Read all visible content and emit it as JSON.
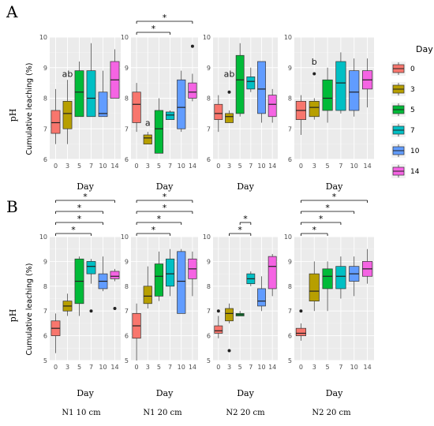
{
  "figure": {
    "panel_labels": [
      "A",
      "B"
    ],
    "y_label": "pH",
    "x_label": "Day",
    "inner_ylabel": "Cumulative leaching (%)",
    "legend": {
      "title": "Day",
      "labels": [
        "0",
        "3",
        "5",
        "7",
        "10",
        "14"
      ],
      "colors": [
        "#f8766d",
        "#b79f00",
        "#00ba38",
        "#00bfc4",
        "#619cff",
        "#f564e3"
      ]
    },
    "captions": [
      "N1 10 cm",
      "N1 20 cm",
      "N2 20 cm",
      "N2 20 cm"
    ]
  },
  "chart_data": [
    {
      "type": "box",
      "row": "A",
      "col": 1,
      "categories": [
        "0",
        "3",
        "5",
        "7",
        "10",
        "14"
      ],
      "ylim": [
        6,
        10
      ],
      "yticks": [
        6,
        7,
        8,
        9,
        10
      ],
      "boxes": [
        {
          "min": 6.5,
          "q1": 6.85,
          "median": 7.2,
          "q3": 7.6,
          "max": 8.3,
          "outliers": []
        },
        {
          "min": 6.5,
          "q1": 7.0,
          "median": 7.5,
          "q3": 7.9,
          "max": 8.6,
          "outliers": []
        },
        {
          "min": 7.4,
          "q1": 7.4,
          "median": 8.2,
          "q3": 8.9,
          "max": 9.2,
          "outliers": []
        },
        {
          "min": 7.4,
          "q1": 7.4,
          "median": 8.0,
          "q3": 8.9,
          "max": 9.8,
          "outliers": []
        },
        {
          "min": 7.4,
          "q1": 7.4,
          "median": 7.5,
          "q3": 8.2,
          "max": 8.9,
          "outliers": []
        },
        {
          "min": 8.0,
          "q1": 8.0,
          "median": 8.6,
          "q3": 9.2,
          "max": 9.6,
          "outliers": []
        }
      ],
      "annotations": [
        {
          "text": "ab",
          "category": "3",
          "y": 8.6
        }
      ],
      "brackets": []
    },
    {
      "type": "box",
      "row": "A",
      "col": 2,
      "categories": [
        "0",
        "3",
        "5",
        "7",
        "10",
        "14"
      ],
      "ylim": [
        6,
        10
      ],
      "yticks": [
        6,
        7,
        8,
        9,
        10
      ],
      "boxes": [
        {
          "min": 6.9,
          "q1": 7.2,
          "median": 7.8,
          "q3": 8.2,
          "max": 8.5,
          "outliers": []
        },
        {
          "min": 6.5,
          "q1": 6.5,
          "median": 6.7,
          "q3": 6.8,
          "max": 6.9,
          "outliers": []
        },
        {
          "min": 6.2,
          "q1": 6.2,
          "median": 7.0,
          "q3": 7.6,
          "max": 8.0,
          "outliers": []
        },
        {
          "min": 7.3,
          "q1": 7.3,
          "median": 7.45,
          "q3": 7.55,
          "max": 7.6,
          "outliers": []
        },
        {
          "min": 6.9,
          "q1": 7.0,
          "median": 7.7,
          "q3": 8.6,
          "max": 8.9,
          "outliers": []
        },
        {
          "min": 7.9,
          "q1": 8.0,
          "median": 8.2,
          "q3": 8.5,
          "max": 8.8,
          "outliers": [
            9.7
          ]
        }
      ],
      "annotations": [
        {
          "text": "a",
          "category": "3",
          "y": 7.0
        }
      ],
      "brackets": [
        {
          "from": "0",
          "to": "14",
          "label": "*"
        },
        {
          "from": "0",
          "to": "7",
          "label": "*"
        }
      ]
    },
    {
      "type": "box",
      "row": "A",
      "col": 3,
      "categories": [
        "0",
        "3",
        "5",
        "7",
        "10",
        "14"
      ],
      "ylim": [
        6,
        10
      ],
      "yticks": [
        6,
        7,
        8,
        9,
        10
      ],
      "boxes": [
        {
          "min": 6.9,
          "q1": 7.3,
          "median": 7.5,
          "q3": 7.8,
          "max": 8.1,
          "outliers": []
        },
        {
          "min": 7.2,
          "q1": 7.2,
          "median": 7.4,
          "q3": 7.5,
          "max": 7.6,
          "outliers": [
            8.2
          ]
        },
        {
          "min": 7.4,
          "q1": 7.5,
          "median": 8.6,
          "q3": 9.4,
          "max": 9.8,
          "outliers": []
        },
        {
          "min": 8.2,
          "q1": 8.3,
          "median": 8.55,
          "q3": 8.7,
          "max": 9.0,
          "outliers": []
        },
        {
          "min": 7.2,
          "q1": 7.5,
          "median": 8.3,
          "q3": 9.2,
          "max": 9.2,
          "outliers": []
        },
        {
          "min": 7.2,
          "q1": 7.4,
          "median": 7.8,
          "q3": 8.1,
          "max": 8.3,
          "outliers": []
        }
      ],
      "annotations": [
        {
          "text": "ab",
          "category": "3",
          "y": 8.6
        }
      ],
      "brackets": []
    },
    {
      "type": "box",
      "row": "A",
      "col": 4,
      "categories": [
        "0",
        "3",
        "5",
        "7",
        "10",
        "14"
      ],
      "ylim": [
        6,
        10
      ],
      "yticks": [
        6,
        7,
        8,
        9,
        10
      ],
      "boxes": [
        {
          "min": 6.8,
          "q1": 7.3,
          "median": 7.6,
          "q3": 7.9,
          "max": 8.1,
          "outliers": []
        },
        {
          "min": 7.3,
          "q1": 7.4,
          "median": 7.7,
          "q3": 7.9,
          "max": 8.0,
          "outliers": [
            8.8
          ]
        },
        {
          "min": 7.2,
          "q1": 7.6,
          "median": 8.0,
          "q3": 8.6,
          "max": 9.0,
          "outliers": []
        },
        {
          "min": 7.5,
          "q1": 7.6,
          "median": 8.5,
          "q3": 9.2,
          "max": 9.5,
          "outliers": []
        },
        {
          "min": 7.4,
          "q1": 7.6,
          "median": 8.2,
          "q3": 8.9,
          "max": 9.3,
          "outliers": []
        },
        {
          "min": 7.7,
          "q1": 8.3,
          "median": 8.6,
          "q3": 8.9,
          "max": 9.3,
          "outliers": []
        }
      ],
      "annotations": [
        {
          "text": "b",
          "category": "3",
          "y": 9.0
        }
      ],
      "brackets": []
    },
    {
      "type": "box",
      "row": "B",
      "col": 1,
      "categories": [
        "0",
        "3",
        "5",
        "7",
        "10",
        "14"
      ],
      "ylim": [
        5,
        10
      ],
      "yticks": [
        5,
        6,
        7,
        8,
        9,
        10
      ],
      "boxes": [
        {
          "min": 5.3,
          "q1": 6.0,
          "median": 6.3,
          "q3": 6.6,
          "max": 6.9,
          "outliers": []
        },
        {
          "min": 6.8,
          "q1": 7.0,
          "median": 7.2,
          "q3": 7.4,
          "max": 7.7,
          "outliers": []
        },
        {
          "min": 6.8,
          "q1": 7.3,
          "median": 8.2,
          "q3": 9.1,
          "max": 9.2,
          "outliers": []
        },
        {
          "min": 8.1,
          "q1": 8.5,
          "median": 8.8,
          "q3": 9.0,
          "max": 9.1,
          "outliers": [
            7.0
          ]
        },
        {
          "min": 7.8,
          "q1": 7.9,
          "median": 8.2,
          "q3": 8.5,
          "max": 9.2,
          "outliers": []
        },
        {
          "min": 8.2,
          "q1": 8.3,
          "median": 8.4,
          "q3": 8.6,
          "max": 8.7,
          "outliers": [
            7.1
          ]
        }
      ],
      "annotations": [],
      "brackets": [
        {
          "from": "0",
          "to": "14",
          "label": "*"
        },
        {
          "from": "0",
          "to": "10",
          "label": "*"
        },
        {
          "from": "0",
          "to": "10",
          "label": "*"
        },
        {
          "from": "0",
          "to": "7",
          "label": "*"
        }
      ]
    },
    {
      "type": "box",
      "row": "B",
      "col": 2,
      "categories": [
        "0",
        "3",
        "5",
        "7",
        "10",
        "14"
      ],
      "ylim": [
        5,
        10
      ],
      "yticks": [
        5,
        6,
        7,
        8,
        9,
        10
      ],
      "boxes": [
        {
          "min": 5.0,
          "q1": 5.9,
          "median": 6.4,
          "q3": 6.9,
          "max": 7.3,
          "outliers": []
        },
        {
          "min": 7.1,
          "q1": 7.3,
          "median": 7.6,
          "q3": 8.0,
          "max": 8.8,
          "outliers": []
        },
        {
          "min": 7.4,
          "q1": 7.6,
          "median": 8.4,
          "q3": 8.9,
          "max": 9.4,
          "outliers": []
        },
        {
          "min": 7.6,
          "q1": 8.0,
          "median": 8.5,
          "q3": 9.1,
          "max": 9.5,
          "outliers": []
        },
        {
          "min": 6.9,
          "q1": 6.9,
          "median": 8.2,
          "q3": 9.4,
          "max": 9.5,
          "outliers": []
        },
        {
          "min": 7.6,
          "q1": 8.3,
          "median": 8.7,
          "q3": 9.1,
          "max": 9.4,
          "outliers": []
        }
      ],
      "annotations": [],
      "brackets": [
        {
          "from": "0",
          "to": "14",
          "label": "*"
        },
        {
          "from": "0",
          "to": "14",
          "label": "*"
        },
        {
          "from": "0",
          "to": "10",
          "label": "*"
        },
        {
          "from": "0",
          "to": "7",
          "label": "*"
        }
      ]
    },
    {
      "type": "box",
      "row": "B",
      "col": 3,
      "categories": [
        "0",
        "3",
        "5",
        "7",
        "10",
        "14"
      ],
      "ylim": [
        5,
        10
      ],
      "yticks": [
        5,
        6,
        7,
        8,
        9,
        10
      ],
      "boxes": [
        {
          "min": 5.9,
          "q1": 6.1,
          "median": 6.2,
          "q3": 6.4,
          "max": 6.8,
          "outliers": [
            7.0
          ]
        },
        {
          "min": 6.5,
          "q1": 6.6,
          "median": 6.9,
          "q3": 7.1,
          "max": 7.3,
          "outliers": [
            5.4
          ]
        },
        {
          "min": 6.8,
          "q1": 6.8,
          "median": 6.85,
          "q3": 6.9,
          "max": 7.0,
          "outliers": []
        },
        {
          "min": 8.0,
          "q1": 8.1,
          "median": 8.3,
          "q3": 8.5,
          "max": 8.6,
          "outliers": []
        },
        {
          "min": 7.0,
          "q1": 7.2,
          "median": 7.4,
          "q3": 7.9,
          "max": 8.4,
          "outliers": []
        },
        {
          "min": 7.6,
          "q1": 7.9,
          "median": 8.8,
          "q3": 9.2,
          "max": 9.3,
          "outliers": []
        }
      ],
      "annotations": [],
      "brackets": [
        {
          "from": "5",
          "to": "7",
          "label": "*"
        },
        {
          "from": "3",
          "to": "7",
          "label": "*"
        }
      ]
    },
    {
      "type": "box",
      "row": "B",
      "col": 4,
      "categories": [
        "0",
        "3",
        "5",
        "7",
        "10",
        "14"
      ],
      "ylim": [
        5,
        10
      ],
      "yticks": [
        5,
        6,
        7,
        8,
        9,
        10
      ],
      "boxes": [
        {
          "min": 5.8,
          "q1": 6.0,
          "median": 6.1,
          "q3": 6.3,
          "max": 6.5,
          "outliers": [
            7.0
          ]
        },
        {
          "min": 7.0,
          "q1": 7.4,
          "median": 7.8,
          "q3": 8.5,
          "max": 9.0,
          "outliers": []
        },
        {
          "min": 7.0,
          "q1": 7.9,
          "median": 8.4,
          "q3": 8.7,
          "max": 9.0,
          "outliers": []
        },
        {
          "min": 7.5,
          "q1": 7.9,
          "median": 8.4,
          "q3": 8.8,
          "max": 9.2,
          "outliers": []
        },
        {
          "min": 7.6,
          "q1": 8.2,
          "median": 8.5,
          "q3": 8.8,
          "max": 9.2,
          "outliers": []
        },
        {
          "min": 8.1,
          "q1": 8.4,
          "median": 8.7,
          "q3": 9.0,
          "max": 9.5,
          "outliers": []
        }
      ],
      "annotations": [],
      "brackets": [
        {
          "from": "0",
          "to": "14",
          "label": "*"
        },
        {
          "from": "0",
          "to": "10",
          "label": "*"
        },
        {
          "from": "0",
          "to": "7",
          "label": "*"
        },
        {
          "from": "0",
          "to": "5",
          "label": "*"
        }
      ]
    }
  ]
}
